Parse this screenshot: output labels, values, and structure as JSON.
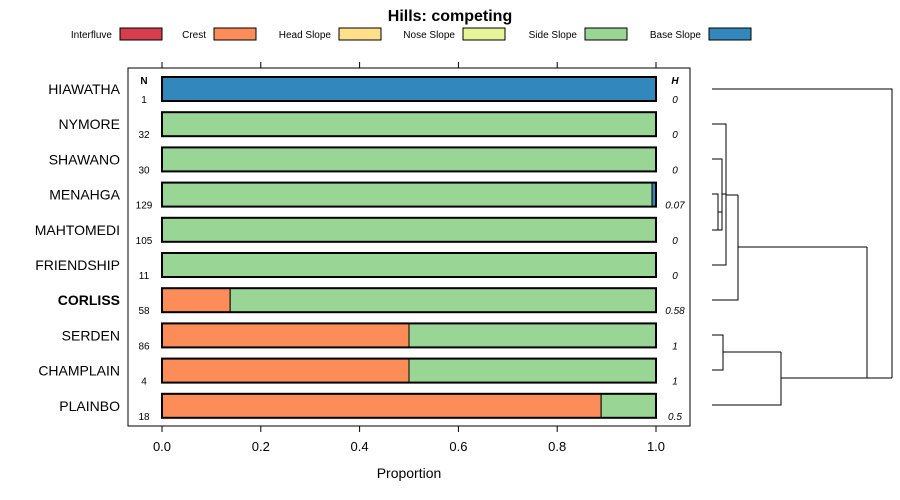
{
  "chart_data": {
    "type": "bar",
    "stacked": true,
    "orientation": "horizontal",
    "title": "Hills: competing",
    "xlabel": "Proportion",
    "xlim": [
      0,
      1
    ],
    "xticks": [
      0.0,
      0.2,
      0.4,
      0.6,
      0.8,
      1.0
    ],
    "xtick_labels": [
      "0.0",
      "0.2",
      "0.4",
      "0.6",
      "0.8",
      "1.0"
    ],
    "n_header": "N",
    "h_header": "H",
    "legend_position": "top",
    "legend": [
      {
        "name": "Interfluve",
        "color": "#D53E4F"
      },
      {
        "name": "Crest",
        "color": "#FC8D59"
      },
      {
        "name": "Head Slope",
        "color": "#FEE08B"
      },
      {
        "name": "Nose Slope",
        "color": "#E6F598"
      },
      {
        "name": "Side Slope",
        "color": "#99D594"
      },
      {
        "name": "Base Slope",
        "color": "#3288BD"
      }
    ],
    "categories": [
      "HIAWATHA",
      "NYMORE",
      "SHAWANO",
      "MENAHGA",
      "MAHTOMEDI",
      "FRIENDSHIP",
      "CORLISS",
      "SERDEN",
      "CHAMPLAIN",
      "PLAINBO"
    ],
    "highlighted": "CORLISS",
    "n": [
      "1",
      "32",
      "30",
      "129",
      "105",
      "11",
      "58",
      "86",
      "4",
      "18"
    ],
    "h": [
      "0",
      "0",
      "0",
      "0.07",
      "0",
      "0",
      "0.58",
      "1",
      "1",
      "0.5"
    ],
    "series": [
      {
        "name": "Interfluve",
        "values": [
          0,
          0,
          0,
          0,
          0,
          0,
          0,
          0,
          0,
          0
        ]
      },
      {
        "name": "Crest",
        "values": [
          0,
          0,
          0,
          0,
          0,
          0,
          0.138,
          0.5,
          0.5,
          0.889
        ]
      },
      {
        "name": "Head Slope",
        "values": [
          0,
          0,
          0,
          0,
          0,
          0,
          0,
          0,
          0,
          0
        ]
      },
      {
        "name": "Nose Slope",
        "values": [
          0,
          0,
          0,
          0,
          0,
          0,
          0,
          0,
          0,
          0
        ]
      },
      {
        "name": "Side Slope",
        "values": [
          0,
          1,
          1,
          0.992,
          1,
          1,
          0.862,
          0.5,
          0.5,
          0.111
        ]
      },
      {
        "name": "Base Slope",
        "values": [
          1,
          0,
          0,
          0.008,
          0,
          0,
          0,
          0,
          0,
          0
        ]
      }
    ]
  }
}
